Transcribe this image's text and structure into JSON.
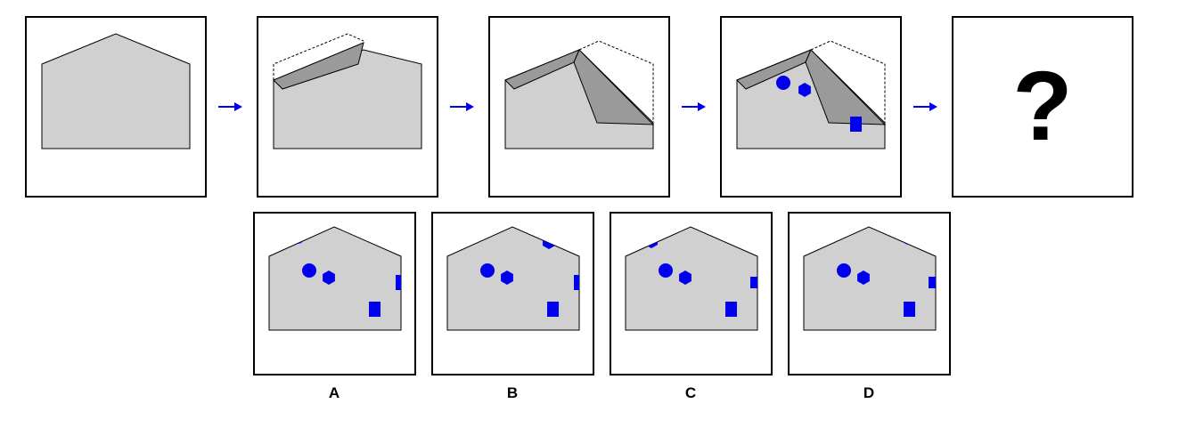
{
  "question_mark": "?",
  "options": [
    {
      "label": "A"
    },
    {
      "label": "B"
    },
    {
      "label": "C"
    },
    {
      "label": "D"
    }
  ],
  "colors": {
    "paper": "#d0d0d0",
    "fold": "#9a9a9a",
    "marker": "#0000ee",
    "arrow": "#0000ee",
    "outline": "#000000"
  }
}
